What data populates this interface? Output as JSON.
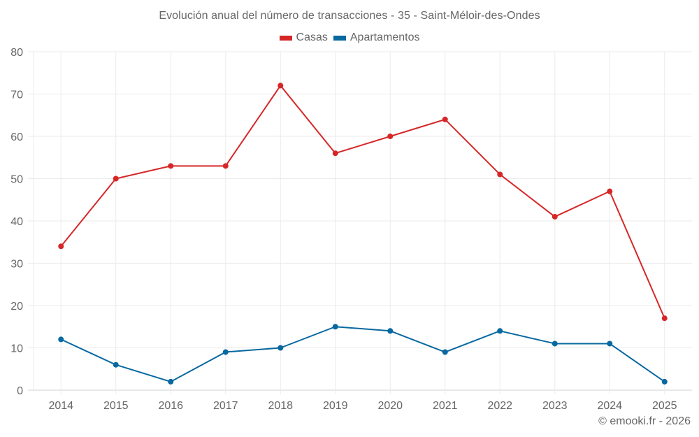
{
  "chart_data": {
    "type": "line",
    "title": "Evolución anual del número de transacciones - 35 - Saint-Méloir-des-Ondes",
    "xlabel": "",
    "ylabel": "",
    "categories": [
      "2014",
      "2015",
      "2016",
      "2017",
      "2018",
      "2019",
      "2020",
      "2021",
      "2022",
      "2023",
      "2024",
      "2025"
    ],
    "series": [
      {
        "name": "Casas",
        "color": "#d62728",
        "values": [
          34,
          50,
          53,
          53,
          72,
          56,
          60,
          64,
          51,
          41,
          47,
          17
        ]
      },
      {
        "name": "Apartamentos",
        "color": "#0868a0",
        "values": [
          12,
          6,
          2,
          9,
          10,
          15,
          14,
          9,
          14,
          11,
          11,
          2
        ]
      }
    ],
    "ylim": [
      0,
      80
    ],
    "yticks": [
      0,
      10,
      20,
      30,
      40,
      50,
      60,
      70,
      80
    ],
    "grid": true,
    "legend_position": "top-center"
  },
  "credit": "© emooki.fr - 2026"
}
